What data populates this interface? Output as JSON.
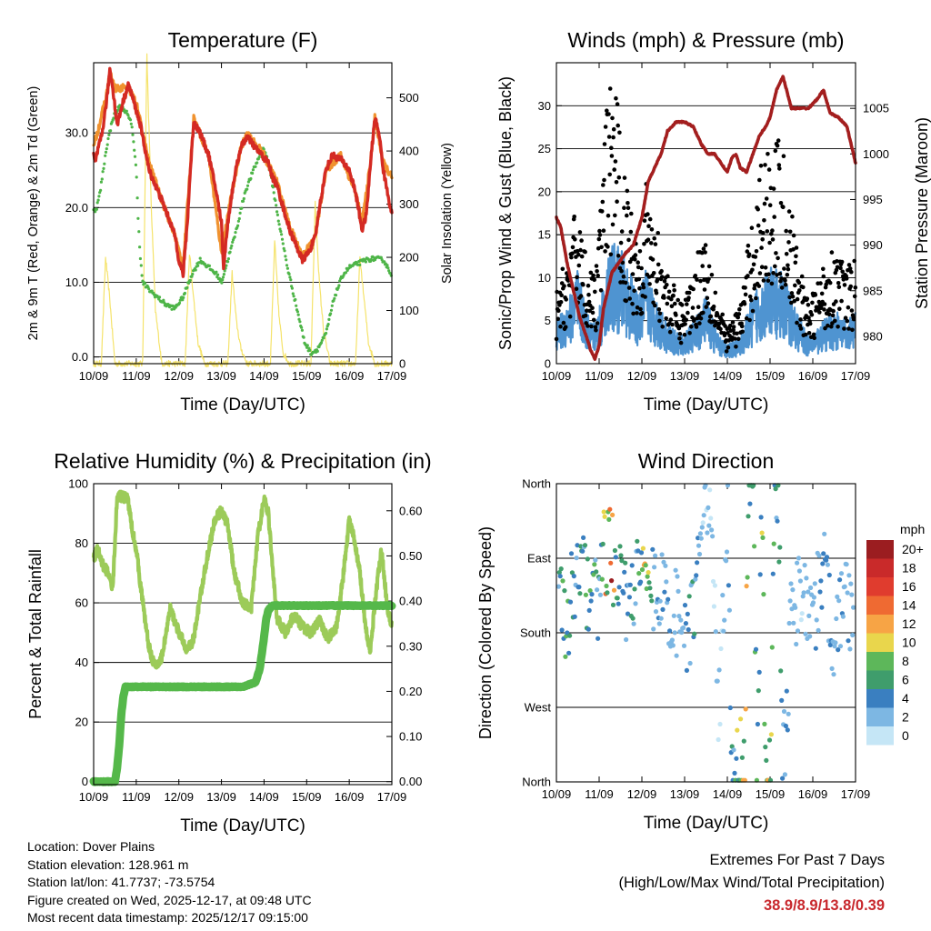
{
  "figure": {
    "x_ticks": [
      "10/09",
      "11/09",
      "12/09",
      "13/09",
      "14/09",
      "15/09",
      "16/09",
      "17/09"
    ],
    "x_label": "Time (Day/UTC)"
  },
  "colors": {
    "temp_2m": "#d42a23",
    "temp_9m": "#f0922e",
    "dewpoint": "#4eb548",
    "solar": "#f5e36b",
    "pressure": "#a31e1e",
    "gust": "#000000",
    "wind": "#4f94d1",
    "rh": "#9ccb59",
    "precip": "#55b84a"
  },
  "chart_data": [
    {
      "id": "temperature",
      "type": "line",
      "title": "Temperature (F)",
      "xlabel": "Time (Day/UTC)",
      "ylabel": "2m & 9m T (Red, Orange) & 2m Td (Green)",
      "y2label": "Solar Insolation (Yellow)",
      "ylim": [
        -0.9,
        39.4
      ],
      "y2lim": [
        0,
        566
      ],
      "yticks": [
        "0.0",
        "10.0",
        "20.0",
        "30.0"
      ],
      "y2ticks": [
        "0",
        "100",
        "200",
        "300",
        "400",
        "500"
      ],
      "grid": "horizontal",
      "series": [
        {
          "name": "2m T",
          "axis": "left",
          "x": [
            0,
            0.03,
            0.2,
            0.32,
            0.38,
            0.45,
            0.55,
            0.68,
            0.82,
            0.9,
            1.0,
            1.1,
            1.2,
            1.3,
            1.45,
            1.6,
            1.8,
            1.92,
            2.0,
            2.1,
            2.2,
            2.27,
            2.35,
            2.5,
            2.7,
            2.85,
            3.0,
            3.05,
            3.15,
            3.3,
            3.45,
            3.6,
            3.8,
            3.95,
            4.1,
            4.2,
            4.3,
            4.45,
            4.6,
            4.75,
            4.9,
            5.05,
            5.2,
            5.3,
            5.45,
            5.6,
            5.8,
            6.0,
            6.15,
            6.3,
            6.4,
            6.5,
            6.6,
            6.7,
            6.8,
            6.9,
            7.0
          ],
          "values": [
            27,
            26,
            30,
            35,
            38.5,
            36,
            31,
            34,
            36.5,
            35,
            33,
            31,
            28,
            25,
            23,
            21,
            18,
            16,
            13,
            11,
            18,
            25,
            31.5,
            30,
            27,
            23,
            18,
            12,
            18,
            24,
            28,
            29.5,
            28,
            27,
            26,
            24,
            23,
            20,
            17,
            15,
            13,
            14,
            16,
            20,
            25,
            27,
            26.5,
            25,
            22,
            17,
            19,
            26,
            32,
            30,
            25,
            22,
            19
          ]
        },
        {
          "name": "9m T",
          "axis": "left",
          "x": [
            0,
            0.3,
            0.38,
            0.5,
            0.82,
            1.0,
            1.3,
            1.6,
            1.92,
            2.1,
            2.35,
            2.7,
            3.0,
            3.15,
            3.45,
            3.6,
            3.95,
            4.3,
            4.6,
            4.9,
            5.2,
            5.45,
            5.8,
            6.15,
            6.3,
            6.5,
            6.6,
            6.8,
            7.0
          ],
          "values": [
            28,
            35,
            38,
            36,
            36,
            34,
            26,
            21,
            16,
            12,
            32,
            27,
            14,
            19,
            28,
            29.8,
            27.5,
            23.5,
            17.5,
            13.5,
            16,
            25,
            27,
            22,
            18,
            26,
            32,
            26,
            24
          ]
        },
        {
          "name": "2m Td",
          "axis": "left",
          "x": [
            0,
            0.05,
            0.15,
            0.3,
            0.45,
            0.6,
            0.75,
            0.9,
            1.0,
            1.05,
            1.1,
            1.15,
            1.3,
            1.5,
            1.7,
            1.9,
            2.1,
            2.3,
            2.5,
            2.7,
            2.9,
            3.0,
            3.15,
            3.35,
            3.55,
            3.75,
            3.9,
            4.0,
            4.1,
            4.2,
            4.35,
            4.55,
            4.75,
            4.95,
            5.1,
            5.25,
            5.45,
            5.65,
            5.85,
            6.0,
            6.2,
            6.4,
            6.6,
            6.8,
            6.9,
            7.0
          ],
          "values": [
            20,
            19.5,
            22,
            28,
            32,
            33.5,
            33,
            31,
            25,
            18,
            13,
            10,
            9,
            8,
            7,
            6.5,
            8,
            11,
            13,
            12,
            11,
            10,
            13,
            17,
            22,
            25,
            27,
            28,
            26,
            23,
            18,
            12,
            7,
            2,
            0.5,
            1,
            3,
            8,
            11,
            12,
            12.5,
            13,
            13.2,
            13,
            12,
            11
          ]
        },
        {
          "name": "Solar Insolation",
          "axis": "right",
          "x": [
            0,
            0.18,
            0.28,
            0.38,
            0.5,
            0.7,
            1.15,
            1.25,
            1.35,
            1.45,
            1.6,
            2.15,
            2.25,
            2.35,
            2.45,
            2.6,
            3.15,
            3.25,
            3.35,
            3.45,
            3.6,
            4.15,
            4.25,
            4.35,
            4.45,
            4.6,
            5.1,
            5.2,
            5.3,
            5.4,
            5.55,
            6.15,
            6.25,
            6.35,
            6.45,
            6.6,
            7.0
          ],
          "values": [
            0,
            0,
            200,
            120,
            0,
            0,
            0,
            580,
            300,
            100,
            0,
            0,
            210,
            120,
            40,
            0,
            0,
            170,
            80,
            30,
            0,
            0,
            230,
            90,
            20,
            0,
            0,
            300,
            150,
            60,
            0,
            0,
            200,
            120,
            40,
            0,
            0
          ]
        }
      ]
    },
    {
      "id": "winds",
      "type": "scatter+line",
      "title": "Winds (mph) & Pressure (mb)",
      "xlabel": "Time (Day/UTC)",
      "ylabel": "Sonic/Prop Wind & Gust (Blue, Black)",
      "y2label": "Station Pressure (Maroon)",
      "ylim": [
        0,
        35
      ],
      "y2lim": [
        977,
        1010
      ],
      "yticks": [
        "0",
        "5",
        "10",
        "15",
        "20",
        "25",
        "30"
      ],
      "y2ticks": [
        "980",
        "985",
        "990",
        "995",
        "1000",
        "1005"
      ],
      "grid": "horizontal",
      "series": [
        {
          "name": "Station Pressure",
          "axis": "right",
          "x": [
            0,
            0.1,
            0.25,
            0.4,
            0.55,
            0.7,
            0.8,
            0.9,
            1.0,
            1.1,
            1.2,
            1.3,
            1.45,
            1.6,
            1.8,
            2.0,
            2.15,
            2.3,
            2.45,
            2.6,
            2.8,
            3.0,
            3.2,
            3.4,
            3.55,
            3.7,
            3.85,
            4.0,
            4.1,
            4.2,
            4.3,
            4.45,
            4.6,
            4.75,
            4.9,
            5.0,
            5.15,
            5.3,
            5.5,
            5.7,
            5.9,
            6.1,
            6.25,
            6.4,
            6.6,
            6.8,
            7.0
          ],
          "values": [
            993,
            992,
            988,
            985,
            982,
            980,
            978.5,
            977.5,
            979,
            983,
            985,
            987,
            988,
            989,
            990,
            993,
            997,
            998.5,
            1000,
            1002.5,
            1003.5,
            1003.5,
            1003,
            1001,
            1000,
            1000,
            999,
            998,
            999.5,
            1000,
            998.5,
            998,
            1000,
            1002,
            1003,
            1004,
            1007,
            1008.5,
            1005,
            1005,
            1005,
            1006,
            1007,
            1004.5,
            1004,
            1003,
            999
          ]
        },
        {
          "name": "Wind",
          "axis": "left",
          "x": [
            0,
            0.3,
            0.5,
            0.7,
            0.9,
            1.1,
            1.3,
            1.6,
            1.9,
            2.1,
            2.3,
            2.6,
            2.9,
            3.2,
            3.5,
            3.8,
            4.0,
            4.3,
            4.6,
            4.8,
            5.0,
            5.2,
            5.4,
            5.6,
            5.9,
            6.2,
            6.5,
            6.8,
            7.0
          ],
          "values": [
            3,
            5,
            7,
            4,
            3,
            6,
            9,
            8,
            5,
            7,
            5,
            3,
            2,
            3,
            5,
            2,
            1.5,
            2,
            5,
            6.5,
            7,
            7,
            6,
            4,
            2,
            3,
            4,
            3,
            4
          ]
        },
        {
          "name": "Gust",
          "axis": "left",
          "x": [
            0,
            0.3,
            0.5,
            0.7,
            0.9,
            1.1,
            1.3,
            1.6,
            1.9,
            2.1,
            2.3,
            2.6,
            2.9,
            3.2,
            3.5,
            3.8,
            4.0,
            4.3,
            4.6,
            4.8,
            5.0,
            5.2,
            5.4,
            5.6,
            5.9,
            6.2,
            6.5,
            6.8,
            7.0
          ],
          "values": [
            6,
            10,
            14,
            9,
            7,
            18,
            26,
            16,
            11,
            15,
            12,
            8,
            5,
            8,
            12,
            5,
            3,
            5,
            13,
            17,
            19,
            19,
            16,
            10,
            5,
            8,
            10,
            8,
            9
          ]
        }
      ]
    },
    {
      "id": "humidity",
      "type": "line",
      "title": "Relative Humidity (%) & Precipitation (in)",
      "xlabel": "Time (Day/UTC)",
      "ylabel": "Percent & Total Rainfall",
      "ylim": [
        -1,
        100
      ],
      "y2lim": [
        -0.0066,
        0.66
      ],
      "yticks": [
        "0",
        "20",
        "40",
        "60",
        "80",
        "100"
      ],
      "y2ticks": [
        "0.00",
        "0.10",
        "0.20",
        "0.30",
        "0.40",
        "0.50",
        "0.60"
      ],
      "grid": "horizontal",
      "series": [
        {
          "name": "Relative Humidity",
          "axis": "left",
          "x": [
            0,
            0.1,
            0.2,
            0.35,
            0.45,
            0.55,
            0.6,
            0.8,
            0.9,
            1.0,
            1.1,
            1.2,
            1.3,
            1.45,
            1.6,
            1.8,
            2.0,
            2.2,
            2.35,
            2.5,
            2.7,
            2.85,
            3.0,
            3.15,
            3.3,
            3.5,
            3.7,
            3.85,
            4.0,
            4.1,
            4.2,
            4.3,
            4.5,
            4.7,
            4.9,
            5.1,
            5.3,
            5.5,
            5.7,
            5.85,
            6.0,
            6.1,
            6.25,
            6.4,
            6.5,
            6.6,
            6.75,
            6.9,
            7.0
          ],
          "values": [
            75,
            78,
            73,
            70,
            65,
            95,
            96,
            95,
            85,
            78,
            66,
            55,
            45,
            38,
            42,
            58,
            50,
            44,
            48,
            62,
            78,
            88,
            91,
            86,
            70,
            60,
            58,
            82,
            95,
            90,
            72,
            55,
            50,
            56,
            52,
            50,
            54,
            48,
            52,
            68,
            88,
            82,
            70,
            50,
            44,
            60,
            78,
            58,
            52
          ]
        },
        {
          "name": "Total Precipitation",
          "axis": "right",
          "x": [
            0,
            0.5,
            0.55,
            0.6,
            0.65,
            0.7,
            0.75,
            1.0,
            2.0,
            3.0,
            3.5,
            3.8,
            3.9,
            4.0,
            4.05,
            4.1,
            4.2,
            5.0,
            6.0,
            7.0
          ],
          "values": [
            0.0,
            0.0,
            0.03,
            0.08,
            0.15,
            0.19,
            0.21,
            0.21,
            0.21,
            0.21,
            0.21,
            0.22,
            0.25,
            0.32,
            0.36,
            0.38,
            0.39,
            0.39,
            0.39,
            0.39
          ]
        }
      ]
    },
    {
      "id": "direction",
      "type": "scatter",
      "title": "Wind Direction",
      "xlabel": "Time (Day/UTC)",
      "ylabel": "Direction (Colored By Speed)",
      "ylim": [
        0,
        360
      ],
      "yticks": [
        "North",
        "East",
        "South",
        "West",
        "North"
      ],
      "grid": "horizontal",
      "legend": {
        "position": "right",
        "title": "mph",
        "labels": [
          "20+",
          "18",
          "16",
          "14",
          "12",
          "10",
          "8",
          "6",
          "4",
          "2",
          "0"
        ],
        "colors": [
          "#9b1d20",
          "#c92a2a",
          "#e03c2e",
          "#ef6a32",
          "#f7a445",
          "#e9d64c",
          "#5db75a",
          "#3f9d6c",
          "#3a7fc0",
          "#7db7e3",
          "#c5e6f6"
        ]
      },
      "series": [
        {
          "name": "Wind Direction",
          "x": [
            0.1,
            0.25,
            0.4,
            0.5,
            0.6,
            0.8,
            1.0,
            1.1,
            1.2,
            1.3,
            1.4,
            1.5,
            1.7,
            1.9,
            2.0,
            2.1,
            2.2,
            2.3,
            2.5,
            2.8,
            3.0,
            3.2,
            3.4,
            3.6,
            3.8,
            4.0,
            4.1,
            4.2,
            4.3,
            4.4,
            4.5,
            4.6,
            4.7,
            4.8,
            4.9,
            5.0,
            5.1,
            5.2,
            5.3,
            5.5,
            5.8,
            6.0,
            6.2,
            6.3,
            6.5,
            6.7,
            6.9
          ],
          "values": [
            240,
            190,
            250,
            230,
            260,
            200,
            230,
            270,
            280,
            275,
            250,
            230,
            210,
            260,
            270,
            285,
            250,
            230,
            220,
            200,
            180,
            190,
            300,
            320,
            80,
            340,
            20,
            10,
            30,
            15,
            355,
            350,
            5,
            358,
            10,
            2,
            345,
            350,
            15,
            200,
            230,
            180,
            260,
            240,
            170,
            220,
            200
          ],
          "speeds": [
            4,
            7,
            4,
            3,
            5,
            6,
            4,
            8,
            12,
            14,
            8,
            6,
            4,
            5,
            7,
            10,
            6,
            4,
            3,
            2,
            3,
            4,
            2,
            1,
            1,
            2,
            4,
            6,
            8,
            9,
            7,
            6,
            5,
            7,
            8,
            10,
            6,
            5,
            4,
            2,
            1,
            2,
            3,
            4,
            2,
            3,
            2
          ]
        }
      ]
    }
  ],
  "info": {
    "location": "Location: Dover Plains",
    "elevation": "Station elevation: 128.961 m",
    "latlon": "Station lat/lon: 41.7737; -73.5754",
    "created": "Figure created on Wed, 2025-12-17, at 09:48 UTC",
    "recent": "Most recent data timestamp: 2025/12/17 09:15:00"
  },
  "extremes": {
    "title": "Extremes For Past 7 Days",
    "subtitle": "(High/Low/Max Wind/Total Precipitation)",
    "values": "38.9/8.9/13.8/0.39"
  }
}
